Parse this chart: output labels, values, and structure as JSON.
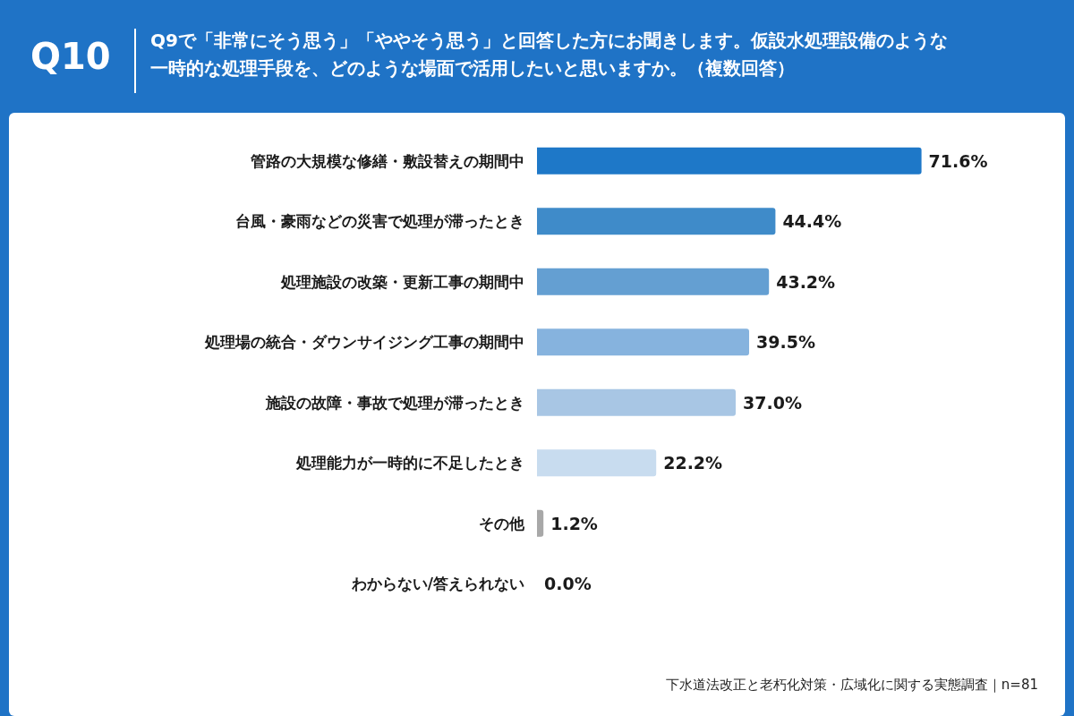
{
  "chart_data": {
    "type": "bar",
    "orientation": "horizontal",
    "title": "Q10",
    "subtitle": "Q9で「非常にそう思う」「ややそう思う」と回答した方にお聞きします。仮設水処理設備のような一時的な処理手段を、どのような場面で活用したいと思いますか。（複数回答）",
    "categories": [
      "管路の大規模な修繕・敷設替えの期間中",
      "台風・豪雨などの災害で処理が滞ったとき",
      "処理施設の改築・更新工事の期間中",
      "処理場の統合・ダウンサイジング工事の期間中",
      "施設の故障・事故で処理が滞ったとき",
      "処理能力が一時的に不足したとき",
      "その他",
      "わからない/答えられない"
    ],
    "values": [
      71.6,
      44.4,
      43.2,
      39.5,
      37.0,
      22.2,
      1.2,
      0.0
    ],
    "value_labels": [
      "71.6%",
      "44.4%",
      "43.2%",
      "39.5%",
      "37.0%",
      "22.2%",
      "1.2%",
      "0.0%"
    ],
    "colors": [
      "#1e78c8",
      "#3f8bc9",
      "#649fd2",
      "#86b3de",
      "#a8c6e4",
      "#c8dcef",
      "#a8a8a8",
      "#a8a8a8"
    ],
    "annotations": [
      "下水道法改正と老朽化対策・広域化に関する実態調査｜n=81"
    ]
  }
}
